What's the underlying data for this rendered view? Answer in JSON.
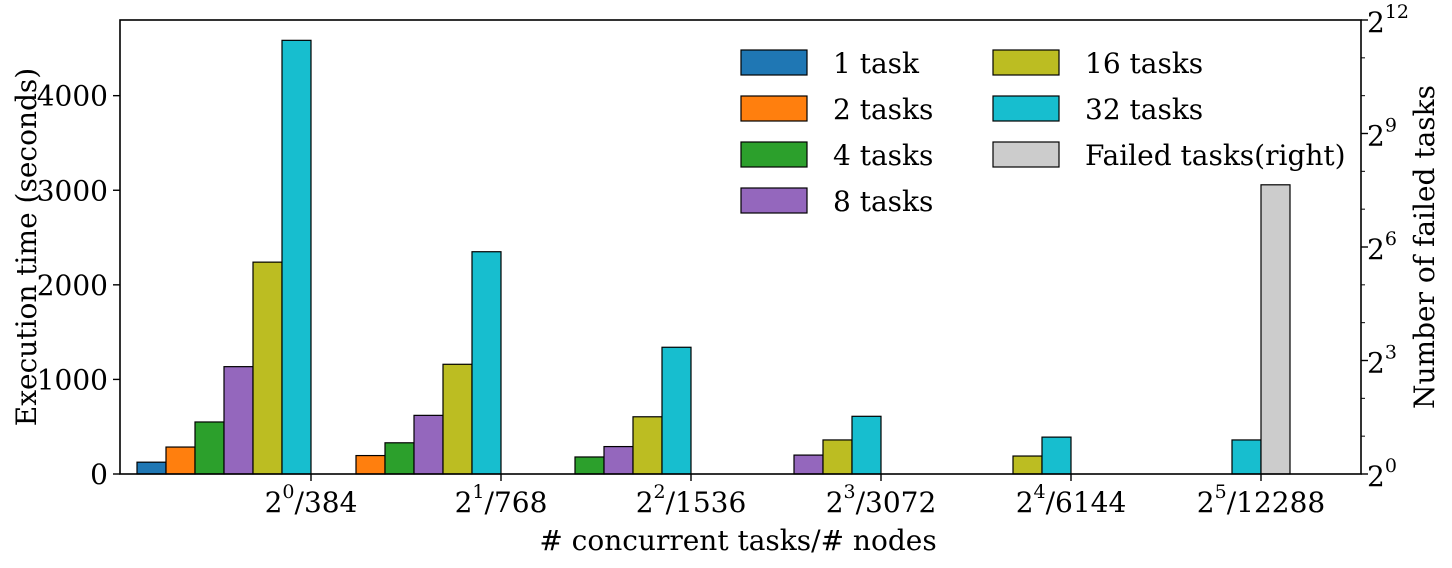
{
  "chart_data": {
    "type": "bar",
    "xlabel": "# concurrent tasks/# nodes",
    "ylabel": "Execution time (seconds)",
    "y2label": "Number of failed tasks",
    "ylim": [
      0,
      4800
    ],
    "y2_scale": "log2",
    "y2lim_exponents": [
      0,
      12
    ],
    "grid": false,
    "legend_position": "top-right",
    "categories": [
      {
        "base": "2",
        "exp": "0",
        "nodes": "/384"
      },
      {
        "base": "2",
        "exp": "1",
        "nodes": "/768"
      },
      {
        "base": "2",
        "exp": "2",
        "nodes": "/1536"
      },
      {
        "base": "2",
        "exp": "3",
        "nodes": "/3072"
      },
      {
        "base": "2",
        "exp": "4",
        "nodes": "/6144"
      },
      {
        "base": "2",
        "exp": "5",
        "nodes": "/12288"
      }
    ],
    "yticks": [
      "0",
      "1000",
      "2000",
      "3000",
      "4000"
    ],
    "ytick_values": [
      0,
      1000,
      2000,
      3000,
      4000
    ],
    "y2ticks": [
      {
        "base": "2",
        "exp": "0",
        "value_exp": 0
      },
      {
        "base": "2",
        "exp": "3",
        "value_exp": 3
      },
      {
        "base": "2",
        "exp": "6",
        "value_exp": 6
      },
      {
        "base": "2",
        "exp": "9",
        "value_exp": 9
      },
      {
        "base": "2",
        "exp": "12",
        "value_exp": 12
      }
    ],
    "series": [
      {
        "name": "1 task",
        "color": "#1f77b4",
        "values": [
          125,
          0,
          0,
          0,
          0,
          0
        ]
      },
      {
        "name": "2 tasks",
        "color": "#ff7f0e",
        "values": [
          285,
          195,
          0,
          0,
          0,
          0
        ]
      },
      {
        "name": "4 tasks",
        "color": "#2ca02c",
        "values": [
          550,
          330,
          180,
          0,
          0,
          0
        ]
      },
      {
        "name": "8 tasks",
        "color": "#9467bd",
        "values": [
          1135,
          620,
          290,
          200,
          0,
          0
        ]
      },
      {
        "name": "16 tasks",
        "color": "#bcbd22",
        "values": [
          2240,
          1160,
          605,
          360,
          190,
          0
        ]
      },
      {
        "name": "32 tasks",
        "color": "#17becf",
        "values": [
          4585,
          2350,
          1340,
          610,
          390,
          360
        ]
      },
      {
        "name": "Failed tasks(right)",
        "color": "#cccccc",
        "axis": "right",
        "values": [
          0,
          0,
          0,
          0,
          0,
          200
        ]
      }
    ]
  }
}
